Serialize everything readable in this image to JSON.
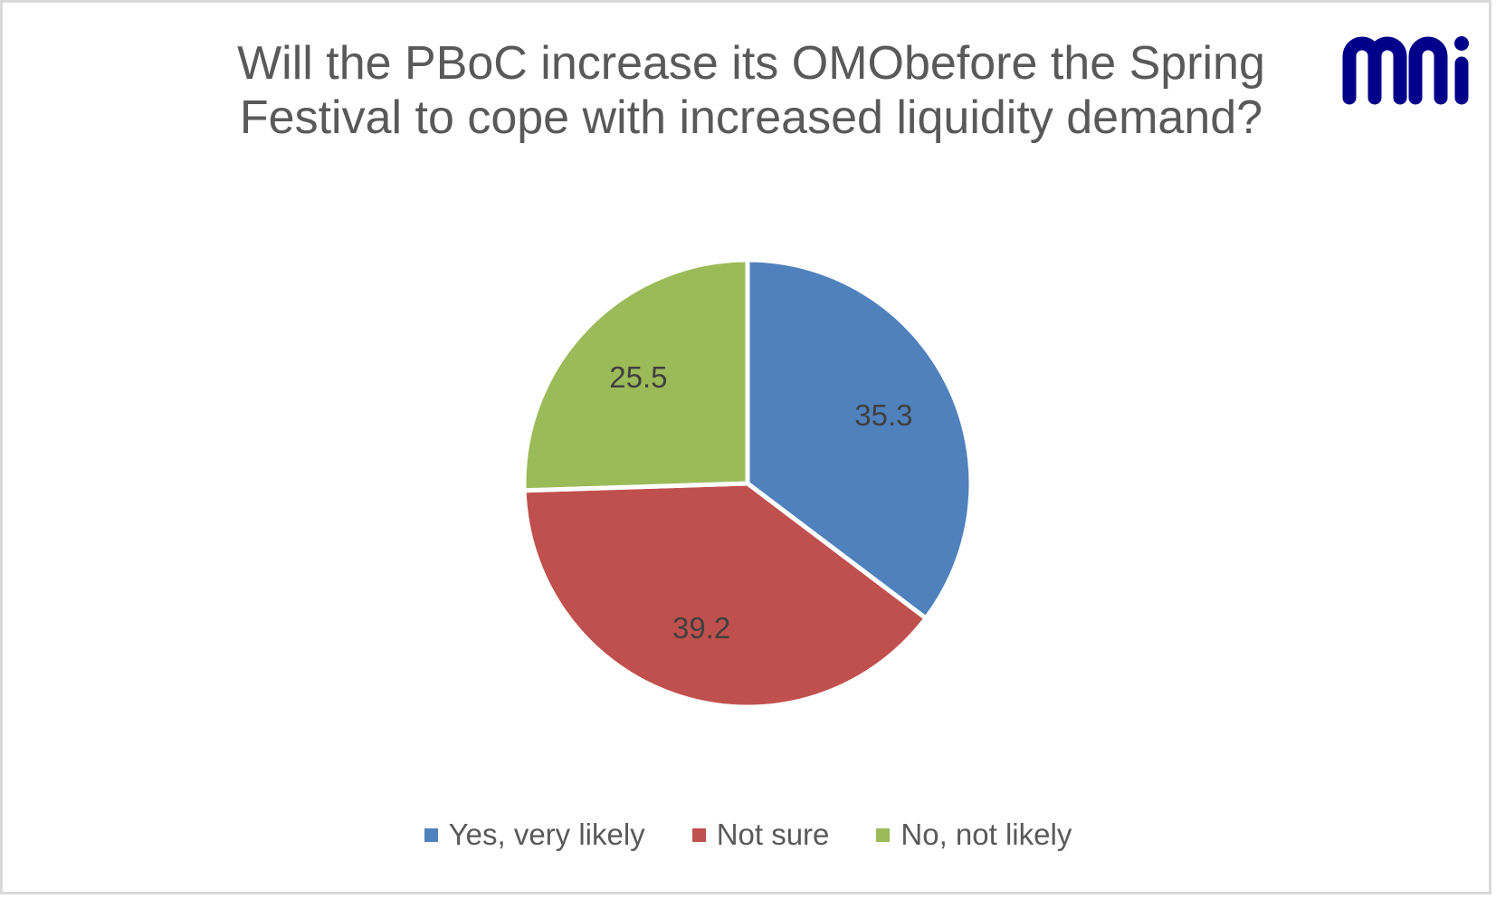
{
  "chart_data": {
    "type": "pie",
    "title": "Will the PBoC increase its OMObefore the Spring Festival to cope with increased liquidity demand?",
    "title_lines": [
      "Will the PBoC increase its OMObefore the Spring",
      "Festival to cope with increased liquidity demand?"
    ],
    "categories": [
      "Yes, very likely",
      "Not sure",
      "No, not likely"
    ],
    "values": [
      35.3,
      39.2,
      25.5
    ],
    "value_labels": [
      "35.3",
      "39.2",
      "25.5"
    ],
    "colors": [
      "#4f81bd",
      "#c0504d",
      "#9bbb59"
    ],
    "start_angle_deg": 0,
    "direction": "clockwise",
    "legend_position": "bottom"
  },
  "logo": {
    "text": "mni",
    "color": "#00008b"
  }
}
